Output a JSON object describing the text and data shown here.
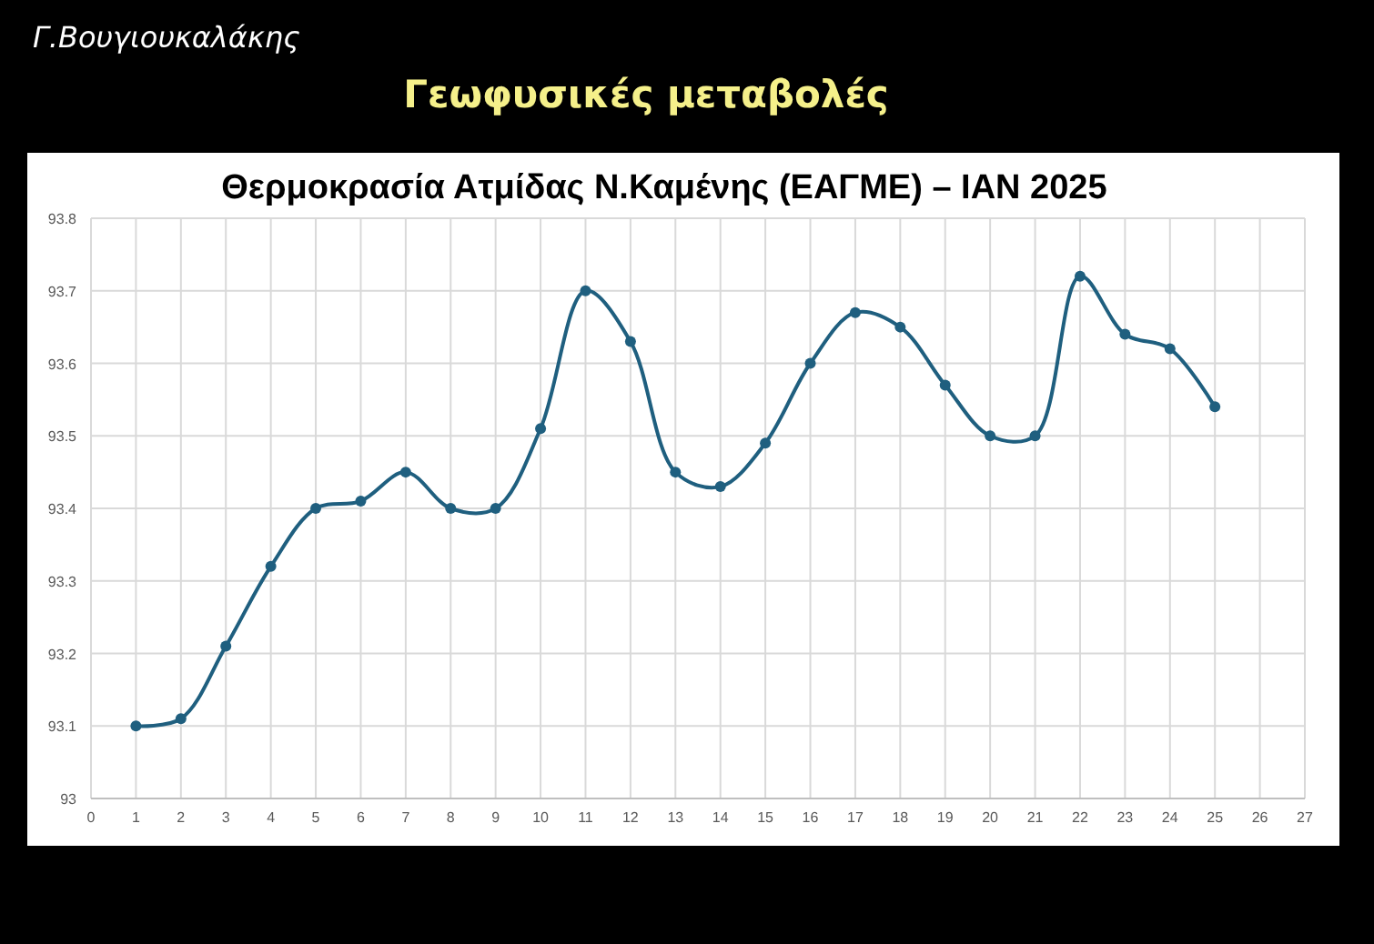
{
  "chart_data": {
    "type": "line",
    "title": "Θερμοκρασία Ατμίδας Ν.Καμένης (ΕΑΓΜΕ) – ΙΑΝ 2025",
    "annotations": [
      "Γ.Βουγιουκαλάκης",
      "Γεωφυσικές μεταβολές"
    ],
    "x": [
      1,
      2,
      3,
      4,
      5,
      6,
      7,
      8,
      9,
      10,
      11,
      12,
      13,
      14,
      15,
      16,
      17,
      18,
      19,
      20,
      21,
      22,
      23,
      24,
      25
    ],
    "series": [
      {
        "color": "#1f5f7f",
        "values": [
          93.1,
          93.11,
          93.21,
          93.32,
          93.4,
          93.41,
          93.45,
          93.4,
          93.4,
          93.51,
          93.7,
          93.63,
          93.45,
          93.43,
          93.49,
          93.6,
          93.67,
          93.65,
          93.57,
          93.5,
          93.5,
          93.72,
          93.64,
          93.62,
          93.54
        ]
      }
    ],
    "xlim": [
      0,
      27
    ],
    "xticks": [
      0,
      1,
      2,
      3,
      4,
      5,
      6,
      7,
      8,
      9,
      10,
      11,
      12,
      13,
      14,
      15,
      16,
      17,
      18,
      19,
      20,
      21,
      22,
      23,
      24,
      25,
      26,
      27
    ],
    "ylim": [
      93,
      93.8
    ],
    "yticks": [
      {
        "value": 93,
        "label": "93"
      },
      {
        "value": 93.1,
        "label": "93.1"
      },
      {
        "value": 93.2,
        "label": "93.2"
      },
      {
        "value": 93.3,
        "label": "93.3"
      },
      {
        "value": 93.4,
        "label": "93.4"
      },
      {
        "value": 93.5,
        "label": "93.5"
      },
      {
        "value": 93.6,
        "label": "93.6"
      },
      {
        "value": 93.7,
        "label": "93.7"
      },
      {
        "value": 93.8,
        "label": "93.8"
      }
    ],
    "grid": true,
    "marker": "circle",
    "line_style": "solid"
  }
}
